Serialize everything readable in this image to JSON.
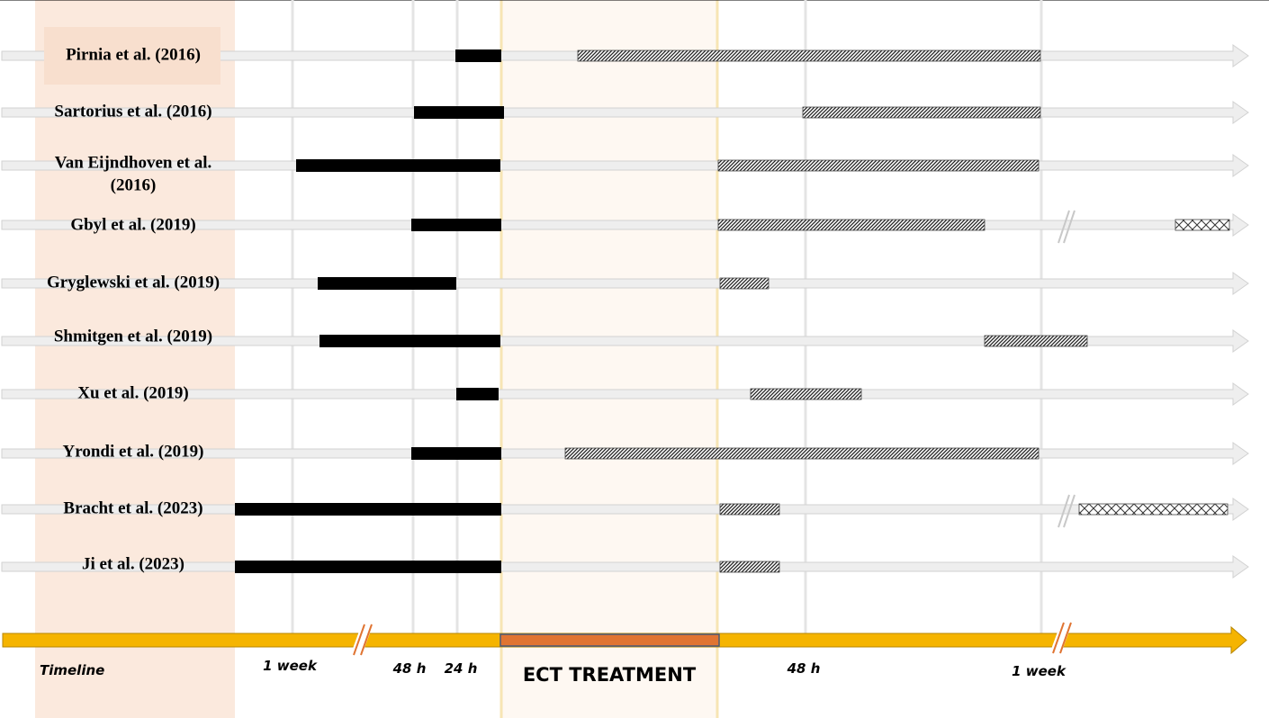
{
  "colors": {
    "label_column_bg": "#fbe9dd",
    "ect_band_bg": "#fef8f2",
    "ect_band_border": "#f7e5b4",
    "gridline": "#e4e4e4",
    "track": "#eeeeee",
    "track_border": "#d2d2d2",
    "pre_bar": "#000000",
    "timeline_bar": "#f5b400",
    "ect_block": "#e07432",
    "ect_block_border": "#4a5a7a",
    "break_mark": "#e07432"
  },
  "studies": [
    {
      "name": "Pirnia et al. (2016)",
      "highlight": true
    },
    {
      "name": "Sartorius et al. (2016)"
    },
    {
      "name": "Van Eijndhoven et al.",
      "name_line2": "(2016)"
    },
    {
      "name": "Gbyl et al. (2019)",
      "break": true
    },
    {
      "name": "Gryglewski et al. (2019)"
    },
    {
      "name": "Shmitgen et al. (2019)"
    },
    {
      "name": "Xu et al. (2019)"
    },
    {
      "name": "Yrondi et al. (2019)"
    },
    {
      "name": "Bracht et al. (2023)",
      "break": true
    },
    {
      "name": "Ji et al. (2023)"
    }
  ],
  "timeline": {
    "label": "Timeline",
    "ect_label": "ECT TREATMENT",
    "ticks": [
      {
        "id": "pre-1week",
        "label": "1 week"
      },
      {
        "id": "pre-48h",
        "label": "48 h"
      },
      {
        "id": "pre-24h",
        "label": "24 h"
      },
      {
        "id": "post-48h",
        "label": "48 h"
      },
      {
        "id": "post-1week",
        "label": "1 week"
      }
    ]
  }
}
